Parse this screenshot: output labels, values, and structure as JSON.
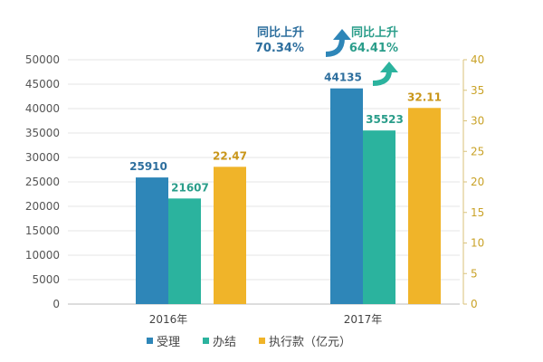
{
  "chart_data": {
    "type": "bar",
    "categories": [
      "2016年",
      "2017年"
    ],
    "series": [
      {
        "name": "受理",
        "axis": "left",
        "color": "#2e86b8",
        "values": [
          25910,
          44135
        ],
        "labels": [
          "25910",
          "44135"
        ]
      },
      {
        "name": "办结",
        "axis": "left",
        "color": "#2bb39e",
        "values": [
          21607,
          35523
        ],
        "labels": [
          "21607",
          "35523"
        ]
      },
      {
        "name": "执行款（亿元）",
        "axis": "right",
        "color": "#f0b429",
        "values": [
          22.47,
          32.11
        ],
        "labels": [
          "22.47",
          "32.11"
        ]
      }
    ],
    "yleft": {
      "range": [
        0,
        50000
      ],
      "ticks": [
        "0",
        "5000",
        "10000",
        "15000",
        "20000",
        "25000",
        "30000",
        "35000",
        "40000",
        "45000",
        "50000"
      ]
    },
    "yright": {
      "range": [
        0,
        40
      ],
      "ticks": [
        "0",
        "5",
        "10",
        "15",
        "20",
        "25",
        "30",
        "35",
        "40"
      ]
    },
    "annotations": [
      {
        "line1": "同比上升",
        "line2": "70.34%",
        "series": "受理",
        "color": "#2e6f9e"
      },
      {
        "line1": "同比上升",
        "line2": "64.41%",
        "series": "办结",
        "color": "#2a9d8a"
      }
    ],
    "grid": true,
    "legend_position": "bottom"
  }
}
